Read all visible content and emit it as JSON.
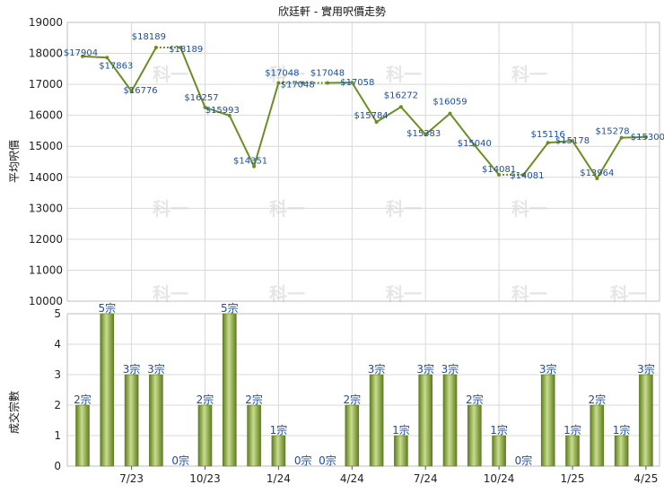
{
  "chart_data": [
    {
      "type": "line",
      "title": "欣廷軒 - 實用呎價走勢",
      "ylabel": "平均呎價",
      "ylim": [
        10000,
        19000
      ],
      "yticks": [
        10000,
        11000,
        12000,
        13000,
        14000,
        15000,
        16000,
        17000,
        18000,
        19000
      ],
      "x_tick_labels": [
        "7/23",
        "10/23",
        "1/24",
        "4/24",
        "7/24",
        "10/24",
        "1/25",
        "4/25"
      ],
      "grid": true,
      "line_color": "#6b8e23",
      "points": [
        {
          "month": "2023-05",
          "value": 17904,
          "label": "$17904"
        },
        {
          "month": "2023-06",
          "value": 17863,
          "label": "$17863"
        },
        {
          "month": "2023-07",
          "value": 16776,
          "label": "$16776"
        },
        {
          "month": "2023-08",
          "value": 18189,
          "label": "$18189"
        },
        {
          "month": "2023-09",
          "value": 18189,
          "label": "$18189"
        },
        {
          "month": "2023-10",
          "value": 16257,
          "label": "$16257"
        },
        {
          "month": "2023-11",
          "value": 15993,
          "label": "$15993"
        },
        {
          "month": "2023-12",
          "value": 14351,
          "label": "$14351"
        },
        {
          "month": "2024-01",
          "value": 17048,
          "label": "$17048"
        },
        {
          "month": "2024-02",
          "value": 17048,
          "label": "$17048"
        },
        {
          "month": "2024-03",
          "value": 17048,
          "label": "$17048"
        },
        {
          "month": "2024-04",
          "value": 17058,
          "label": "$17058"
        },
        {
          "month": "2024-05",
          "value": 15784,
          "label": "$15784"
        },
        {
          "month": "2024-06",
          "value": 16272,
          "label": "$16272"
        },
        {
          "month": "2024-07",
          "value": 15383,
          "label": "$15383"
        },
        {
          "month": "2024-08",
          "value": 16059,
          "label": "$16059"
        },
        {
          "month": "2024-09",
          "value": 15040,
          "label": "$15040"
        },
        {
          "month": "2024-10",
          "value": 14081,
          "label": "$14081"
        },
        {
          "month": "2024-11",
          "value": 14081,
          "label": "$14081"
        },
        {
          "month": "2024-12",
          "value": 15116,
          "label": "$15116"
        },
        {
          "month": "2025-01",
          "value": 15178,
          "label": "$15178"
        },
        {
          "month": "2025-02",
          "value": 13964,
          "label": "$13964"
        },
        {
          "month": "2025-03",
          "value": 15278,
          "label": "$15278"
        },
        {
          "month": "2025-04",
          "value": 15300,
          "label": "$15300"
        }
      ]
    },
    {
      "type": "bar",
      "ylabel": "成交宗數",
      "ylim": [
        0,
        5
      ],
      "yticks": [
        0,
        1,
        2,
        3,
        4,
        5
      ],
      "x_tick_labels": [
        "7/23",
        "10/23",
        "1/24",
        "4/24",
        "7/24",
        "10/24",
        "1/25",
        "4/25"
      ],
      "bar_color": "#7a9a2e",
      "categories": [
        "2023-05",
        "2023-06",
        "2023-07",
        "2023-08",
        "2023-09",
        "2023-10",
        "2023-11",
        "2023-12",
        "2024-01",
        "2024-02",
        "2024-03",
        "2024-04",
        "2024-05",
        "2024-06",
        "2024-07",
        "2024-08",
        "2024-09",
        "2024-10",
        "2024-11",
        "2024-12",
        "2025-01",
        "2025-02",
        "2025-03",
        "2025-04"
      ],
      "values": [
        2,
        5,
        3,
        3,
        0,
        2,
        5,
        2,
        1,
        0,
        0,
        2,
        3,
        1,
        3,
        3,
        2,
        1,
        0,
        3,
        1,
        2,
        1,
        3
      ],
      "labels": [
        "2宗",
        "5宗",
        "3宗",
        "3宗",
        "0宗",
        "2宗",
        "5宗",
        "2宗",
        "1宗",
        "0宗",
        "0宗",
        "2宗",
        "3宗",
        "1宗",
        "3宗",
        "3宗",
        "2宗",
        "1宗",
        "0宗",
        "3宗",
        "1宗",
        "2宗",
        "1宗",
        "3宗"
      ]
    }
  ]
}
